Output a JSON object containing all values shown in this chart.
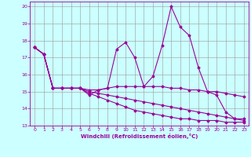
{
  "x": [
    0,
    1,
    2,
    3,
    4,
    5,
    6,
    7,
    8,
    9,
    10,
    11,
    12,
    13,
    14,
    15,
    16,
    17,
    18,
    19,
    20,
    21,
    22,
    23
  ],
  "line1": [
    17.6,
    17.2,
    15.2,
    15.2,
    15.2,
    15.2,
    14.8,
    15.1,
    15.2,
    17.5,
    17.9,
    17.0,
    15.3,
    15.9,
    17.7,
    20.0,
    18.8,
    18.3,
    16.4,
    15.0,
    14.8,
    13.8,
    13.4,
    13.4
  ],
  "line2": [
    17.6,
    17.2,
    15.2,
    15.2,
    15.2,
    15.2,
    15.1,
    15.1,
    15.2,
    15.3,
    15.3,
    15.3,
    15.3,
    15.3,
    15.3,
    15.2,
    15.2,
    15.1,
    15.1,
    15.0,
    15.0,
    14.9,
    14.8,
    14.7
  ],
  "line3": [
    17.6,
    17.2,
    15.2,
    15.2,
    15.2,
    15.2,
    15.0,
    14.9,
    14.8,
    14.7,
    14.6,
    14.5,
    14.4,
    14.3,
    14.2,
    14.1,
    14.0,
    13.9,
    13.8,
    13.7,
    13.6,
    13.5,
    13.4,
    13.3
  ],
  "line4": [
    17.6,
    17.2,
    15.2,
    15.2,
    15.2,
    15.2,
    14.9,
    14.7,
    14.5,
    14.3,
    14.1,
    13.9,
    13.8,
    13.7,
    13.6,
    13.5,
    13.4,
    13.4,
    13.3,
    13.3,
    13.3,
    13.2,
    13.2,
    13.2
  ],
  "color": "#990099",
  "bg_color": "#ccffff",
  "grid_color": "#999999",
  "xlim": [
    -0.5,
    23.5
  ],
  "ylim": [
    13,
    20.3
  ],
  "yticks": [
    13,
    14,
    15,
    16,
    17,
    18,
    19,
    20
  ],
  "xticks": [
    0,
    1,
    2,
    3,
    4,
    5,
    6,
    7,
    8,
    9,
    10,
    11,
    12,
    13,
    14,
    15,
    16,
    17,
    18,
    19,
    20,
    21,
    22,
    23
  ],
  "xlabel": "Windchill (Refroidissement éolien,°C)",
  "marker": "D",
  "markersize": 1.5,
  "linewidth": 0.8
}
